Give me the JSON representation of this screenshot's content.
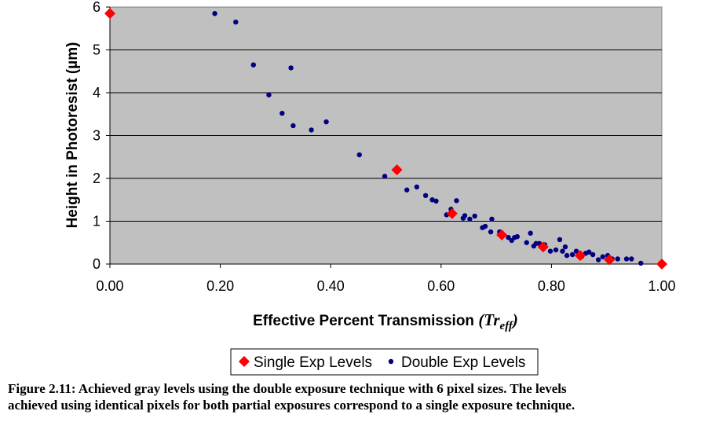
{
  "chart_data": {
    "type": "scatter",
    "xlabel_main": "Effective Percent Transmission ",
    "xlabel_symbol": "(Tr",
    "xlabel_sub": "eff",
    "xlabel_close": ")",
    "ylabel": "Height in Photoresist (µm)",
    "xlim": [
      0,
      1
    ],
    "ylim": [
      0,
      6
    ],
    "x_ticks": [
      "0.00",
      "0.20",
      "0.40",
      "0.60",
      "0.80",
      "1.00"
    ],
    "y_ticks": [
      "0",
      "1",
      "2",
      "3",
      "4",
      "5",
      "6"
    ],
    "grid": "horizontal",
    "legend_position": "bottom",
    "series": [
      {
        "name": "Single Exp Levels",
        "marker": "diamond",
        "color": "#ff0000",
        "points": [
          [
            0.0,
            5.85
          ],
          [
            0.52,
            2.2
          ],
          [
            0.62,
            1.18
          ],
          [
            0.71,
            0.68
          ],
          [
            0.785,
            0.4
          ],
          [
            0.852,
            0.2
          ],
          [
            0.905,
            0.1
          ],
          [
            1.0,
            0.0
          ]
        ]
      },
      {
        "name": "Double Exp Levels",
        "marker": "circle",
        "color": "#000080",
        "points": [
          [
            0.0,
            5.83
          ],
          [
            0.19,
            5.85
          ],
          [
            0.228,
            5.65
          ],
          [
            0.26,
            4.65
          ],
          [
            0.288,
            3.95
          ],
          [
            0.312,
            3.52
          ],
          [
            0.328,
            4.58
          ],
          [
            0.332,
            3.23
          ],
          [
            0.365,
            3.13
          ],
          [
            0.392,
            3.32
          ],
          [
            0.452,
            2.55
          ],
          [
            0.498,
            2.05
          ],
          [
            0.538,
            1.73
          ],
          [
            0.556,
            1.8
          ],
          [
            0.572,
            1.6
          ],
          [
            0.584,
            1.5
          ],
          [
            0.591,
            1.47
          ],
          [
            0.61,
            1.15
          ],
          [
            0.618,
            1.28
          ],
          [
            0.628,
            1.48
          ],
          [
            0.64,
            1.07
          ],
          [
            0.643,
            1.13
          ],
          [
            0.652,
            1.05
          ],
          [
            0.661,
            1.12
          ],
          [
            0.675,
            0.85
          ],
          [
            0.68,
            0.88
          ],
          [
            0.69,
            0.75
          ],
          [
            0.692,
            1.05
          ],
          [
            0.706,
            0.75
          ],
          [
            0.712,
            0.68
          ],
          [
            0.722,
            0.62
          ],
          [
            0.728,
            0.55
          ],
          [
            0.733,
            0.62
          ],
          [
            0.738,
            0.64
          ],
          [
            0.755,
            0.5
          ],
          [
            0.762,
            0.72
          ],
          [
            0.768,
            0.42
          ],
          [
            0.772,
            0.48
          ],
          [
            0.778,
            0.48
          ],
          [
            0.788,
            0.45
          ],
          [
            0.798,
            0.3
          ],
          [
            0.808,
            0.33
          ],
          [
            0.815,
            0.57
          ],
          [
            0.82,
            0.3
          ],
          [
            0.825,
            0.4
          ],
          [
            0.828,
            0.2
          ],
          [
            0.838,
            0.22
          ],
          [
            0.845,
            0.3
          ],
          [
            0.855,
            0.18
          ],
          [
            0.862,
            0.25
          ],
          [
            0.868,
            0.28
          ],
          [
            0.875,
            0.22
          ],
          [
            0.885,
            0.1
          ],
          [
            0.893,
            0.17
          ],
          [
            0.902,
            0.2
          ],
          [
            0.91,
            0.12
          ],
          [
            0.92,
            0.12
          ],
          [
            0.936,
            0.12
          ],
          [
            0.945,
            0.12
          ],
          [
            0.962,
            0.02
          ]
        ]
      }
    ]
  },
  "caption": {
    "line1": "Figure 2.11: Achieved gray levels using the double exposure technique with 6 pixel sizes.  The levels",
    "line2": "achieved using identical pixels for both partial exposures correspond to a single exposure technique."
  }
}
